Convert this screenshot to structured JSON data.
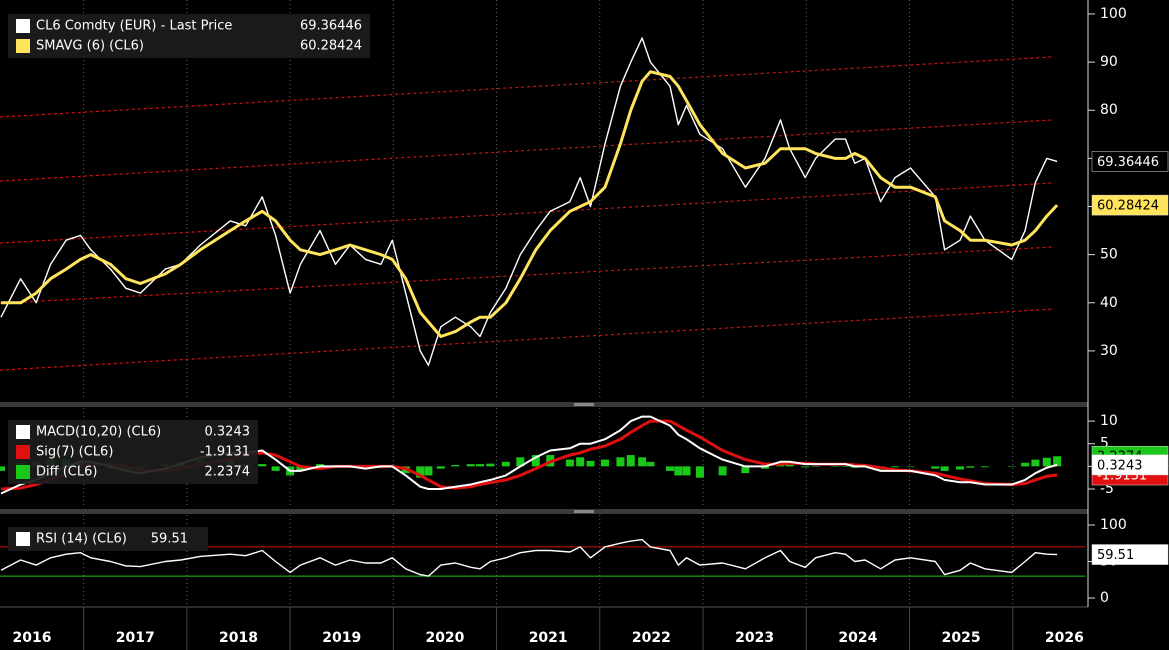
{
  "chart_data": {
    "type": "line",
    "x": [
      2016.2,
      2016.39,
      2016.54,
      2016.68,
      2016.83,
      2016.97,
      2017.07,
      2017.26,
      2017.41,
      2017.55,
      2017.79,
      2017.94,
      2018.13,
      2018.42,
      2018.57,
      2018.73,
      2018.86,
      2019.0,
      2019.1,
      2019.29,
      2019.44,
      2019.58,
      2019.73,
      2019.88,
      2019.99,
      2020.12,
      2020.26,
      2020.34,
      2020.46,
      2020.6,
      2020.75,
      2020.84,
      2020.94,
      2021.09,
      2021.23,
      2021.38,
      2021.52,
      2021.71,
      2021.81,
      2021.91,
      2022.05,
      2022.2,
      2022.3,
      2022.41,
      2022.49,
      2022.68,
      2022.76,
      2022.84,
      2022.97,
      2023.19,
      2023.41,
      2023.6,
      2023.75,
      2023.84,
      2023.99,
      2024.09,
      2024.28,
      2024.38,
      2024.47,
      2024.57,
      2024.72,
      2024.86,
      2025.01,
      2025.25,
      2025.34,
      2025.49,
      2025.59,
      2025.73,
      2025.99,
      2026.12,
      2026.22,
      2026.33,
      2026.43
    ],
    "xlim": [
      2016.19,
      2026.7
    ],
    "xticks": [
      2016,
      2017,
      2018,
      2019,
      2020,
      2021,
      2022,
      2023,
      2024,
      2025,
      2026
    ],
    "panels": [
      {
        "ylim": [
          19.8,
          102.9
        ],
        "yticks": [
          30,
          40,
          50,
          60,
          70,
          80,
          90,
          100
        ],
        "series": [
          {
            "name": "CL6 Comdty (EUR) - Last Price",
            "type": "line",
            "color": "#ffffff",
            "tag_fill": "#000000",
            "tag_text": "#ffffff",
            "values": [
              37,
              45,
              40,
              48,
              53,
              54,
              51,
              47,
              43,
              42,
              47,
              48,
              52,
              57,
              56,
              62,
              54,
              42,
              48,
              55,
              48,
              52,
              49,
              48,
              53,
              42,
              30,
              27,
              35,
              37,
              35,
              33,
              38,
              43,
              50,
              55,
              59,
              61,
              66,
              60,
              73,
              85,
              90,
              95,
              90,
              85,
              77,
              81,
              75,
              72,
              64,
              70,
              78,
              72,
              66,
              70,
              74,
              74,
              69,
              70,
              61,
              66,
              68,
              62,
              51,
              53,
              58,
              53,
              49,
              55,
              65,
              70,
              69.36446
            ]
          },
          {
            "name": "SMAVG (6) (CL6)",
            "type": "line",
            "color": "#ffe45c",
            "tag_fill": "#ffe45c",
            "tag_text": "#000000",
            "values": [
              40,
              40,
              42,
              45,
              47,
              49,
              50,
              48,
              45,
              44,
              46,
              48,
              51,
              55,
              57,
              59,
              57,
              53,
              51,
              50,
              51,
              52,
              51,
              50,
              49,
              45,
              38,
              36,
              33,
              34,
              36,
              37,
              37,
              40,
              45,
              51,
              55,
              59,
              60,
              61,
              64,
              73,
              80,
              86,
              88,
              87,
              85,
              82,
              77,
              71,
              68,
              69,
              72,
              72,
              72,
              71,
              70,
              70,
              71,
              70,
              66,
              64,
              64,
              62,
              57,
              55,
              53,
              53,
              52,
              53,
              55,
              58,
              60.28424
            ]
          }
        ],
        "trend_lines": [
          {
            "color": "#d01010",
            "x": [
              2016.19,
              2026.4
            ],
            "values": [
              78.6,
              91.1
            ]
          },
          {
            "color": "#d01010",
            "x": [
              2016.19,
              2026.4
            ],
            "values": [
              65.3,
              78.0
            ]
          },
          {
            "color": "#d01010",
            "x": [
              2016.19,
              2026.4
            ],
            "values": [
              52.4,
              64.9
            ]
          },
          {
            "color": "#d01010",
            "x": [
              2016.19,
              2026.4
            ],
            "values": [
              39.9,
              51.6
            ]
          },
          {
            "color": "#d01010",
            "x": [
              2016.19,
              2026.4
            ],
            "values": [
              26.0,
              38.7
            ]
          }
        ]
      },
      {
        "ylim": [
          -9.2,
          12.9
        ],
        "yticks": [
          -5,
          0,
          5,
          10
        ],
        "series": [
          {
            "name": "Diff (CL6)",
            "type": "bar",
            "color": "#19c819",
            "tag_fill": "#19c819",
            "tag_text": "#000000",
            "values": [
              -1,
              0.8,
              1,
              1.5,
              1.5,
              1,
              0.5,
              -0.5,
              -1,
              -0.7,
              0.5,
              1,
              1.5,
              1.5,
              0.5,
              0.5,
              -1,
              -2,
              -1,
              0.5,
              0,
              0,
              -0.5,
              0,
              0,
              -1.5,
              -2.5,
              -2,
              -0.5,
              0.3,
              0.5,
              0.5,
              0.6,
              1,
              2,
              2.5,
              2.5,
              1.5,
              2,
              1.2,
              1.5,
              2,
              2.5,
              2,
              1,
              -1,
              -2,
              -2,
              -2.5,
              -2,
              -1.5,
              -0.5,
              0.5,
              0.3,
              -0.2,
              0,
              0,
              0,
              -0.3,
              -0.2,
              -0.7,
              -0.2,
              0,
              -0.5,
              -1,
              -0.7,
              -0.3,
              -0.2,
              0,
              0.8,
              1.5,
              1.9,
              2.2374
            ]
          },
          {
            "name": "Sig(7) (CL6)",
            "type": "line",
            "color": "#e01010",
            "tag_fill": "#e01010",
            "tag_text": "#ffffff",
            "values": [
              -5,
              -4.8,
              -4,
              -3,
              -1.5,
              0,
              0.5,
              0.5,
              0,
              -0.8,
              -1,
              -0.5,
              0.5,
              1.5,
              2.5,
              3,
              2.5,
              1,
              0,
              -0.5,
              0,
              0,
              0,
              0,
              0,
              -0.5,
              -2,
              -3,
              -4.5,
              -4.8,
              -4.5,
              -4,
              -3.6,
              -3,
              -2,
              -0.5,
              1,
              2.5,
              3,
              3.8,
              4.5,
              6,
              7.5,
              9,
              10,
              10,
              9,
              8,
              6.5,
              3.5,
              1.5,
              0.5,
              0.5,
              0.7,
              0.7,
              0.5,
              0.5,
              0.5,
              0.3,
              0.2,
              -0.3,
              -0.8,
              -1,
              -1.5,
              -2,
              -2.8,
              -3.2,
              -3.8,
              -4,
              -3.8,
              -3,
              -2.2,
              -1.9131
            ]
          },
          {
            "name": "MACD(10,20) (CL6)",
            "type": "line",
            "color": "#ffffff",
            "tag_fill": "#ffffff",
            "tag_text": "#000000",
            "values": [
              -6,
              -4,
              -3,
              -1.5,
              0,
              1,
              1,
              0,
              -1,
              -1.5,
              -0.5,
              0.5,
              2,
              3,
              3,
              3.5,
              1.5,
              -1,
              -1,
              0,
              0,
              0,
              -0.5,
              0,
              0,
              -2,
              -4.5,
              -5,
              -5,
              -4.5,
              -4,
              -3.5,
              -3,
              -2,
              0,
              2,
              3.5,
              4,
              5,
              5,
              6,
              8,
              10,
              11,
              11,
              9,
              7,
              6,
              4,
              1.5,
              0,
              0,
              1,
              1,
              0.5,
              0.5,
              0.5,
              0.5,
              0,
              0,
              -1,
              -1,
              -1,
              -2,
              -3,
              -3.5,
              -3.5,
              -4,
              -4,
              -3,
              -1.5,
              -0.3,
              0.3243
            ]
          }
        ],
        "legend_order": [
          2,
          1,
          0
        ]
      },
      {
        "ylim": [
          -9.6,
          113.7
        ],
        "yticks": [
          0,
          50,
          100
        ],
        "series": [
          {
            "name": "RSI (14) (CL6)",
            "type": "line",
            "color": "#ffffff",
            "tag_fill": "#ffffff",
            "tag_text": "#000000",
            "values": [
              38,
              52,
              45,
              55,
              60,
              62,
              55,
              50,
              44,
              43,
              50,
              52,
              57,
              60,
              58,
              65,
              50,
              35,
              45,
              55,
              45,
              52,
              48,
              48,
              55,
              40,
              32,
              30,
              45,
              48,
              42,
              40,
              50,
              55,
              62,
              65,
              65,
              63,
              70,
              55,
              70,
              75,
              78,
              80,
              70,
              65,
              45,
              55,
              45,
              48,
              40,
              55,
              65,
              50,
              42,
              55,
              62,
              60,
              50,
              52,
              40,
              52,
              55,
              50,
              32,
              38,
              48,
              40,
              35,
              50,
              62,
              60,
              59.51
            ]
          }
        ],
        "ref_lines": [
          {
            "value": 70,
            "color": "#d01010"
          },
          {
            "value": 30,
            "color": "#19c819"
          }
        ]
      }
    ]
  }
}
